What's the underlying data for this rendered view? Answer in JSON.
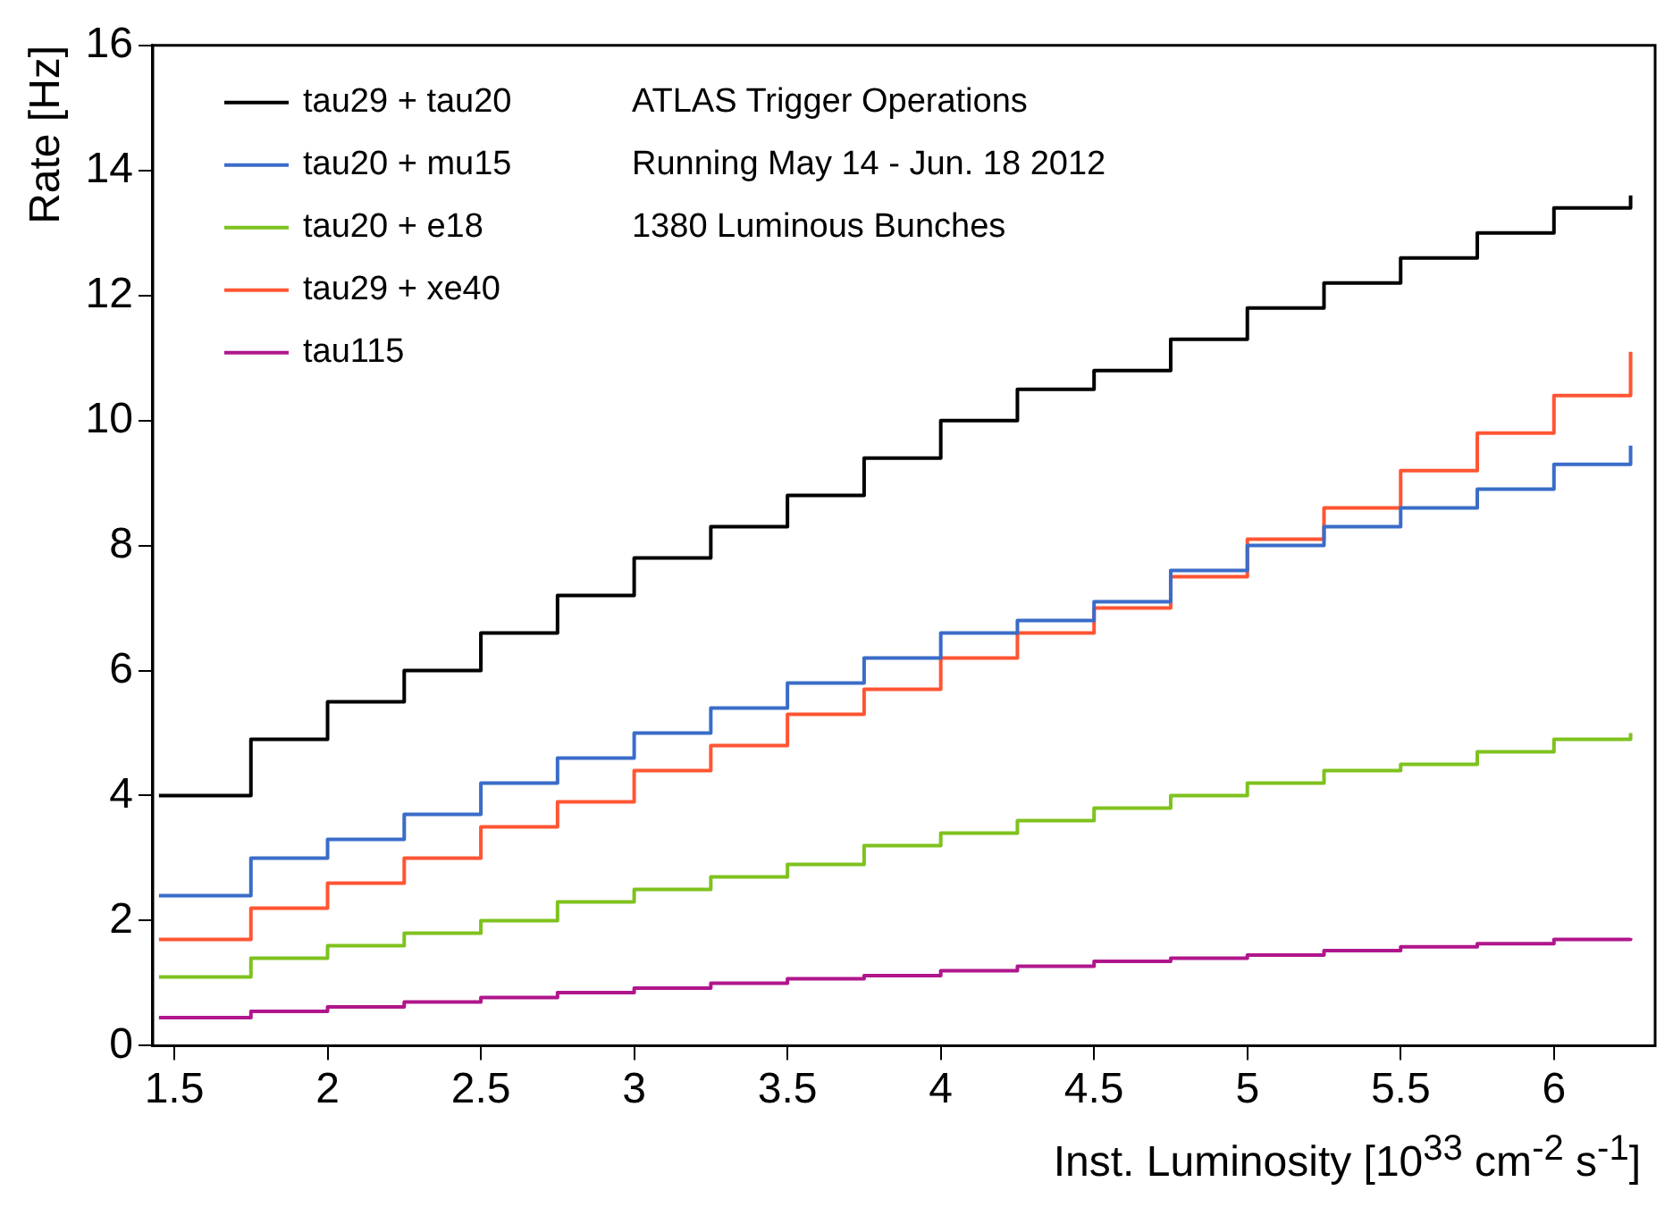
{
  "chart_data": {
    "type": "step",
    "xlabel": "Inst. Luminosity [10$^{33}$ cm$^{-2}$ s$^{-1}$]",
    "ylabel": "Rate [Hz]",
    "annotations": [
      "ATLAS Trigger Operations",
      "Running May 14 - Jun. 18 2012",
      "1380 Luminous Bunches"
    ],
    "x": [
      1.45,
      1.75,
      2,
      2.25,
      2.5,
      2.75,
      3,
      3.25,
      3.5,
      3.75,
      4,
      4.25,
      4.5,
      4.75,
      5,
      5.25,
      5.5,
      5.75,
      6,
      6.25
    ],
    "series": [
      {
        "name": "tau29 + tau20",
        "color": "#000000",
        "values": [
          4.0,
          4.9,
          5.5,
          6.0,
          6.6,
          7.2,
          7.8,
          8.3,
          8.8,
          9.4,
          10.0,
          10.5,
          10.8,
          11.3,
          11.8,
          12.2,
          12.6,
          13.0,
          13.4,
          13.6
        ]
      },
      {
        "name": "tau20 + mu15",
        "color": "#3a6cc8",
        "values": [
          2.4,
          3.0,
          3.3,
          3.7,
          4.2,
          4.6,
          5.0,
          5.4,
          5.8,
          6.2,
          6.6,
          6.8,
          7.1,
          7.6,
          8.0,
          8.3,
          8.6,
          8.9,
          9.3,
          9.6
        ]
      },
      {
        "name": "tau20 + e18",
        "color": "#7ec21e",
        "values": [
          1.1,
          1.4,
          1.6,
          1.8,
          2.0,
          2.3,
          2.5,
          2.7,
          2.9,
          3.2,
          3.4,
          3.6,
          3.8,
          4.0,
          4.2,
          4.4,
          4.5,
          4.7,
          4.9,
          5.0
        ]
      },
      {
        "name": "tau29 + xe40",
        "color": "#ff5533",
        "values": [
          1.7,
          2.2,
          2.6,
          3.0,
          3.5,
          3.9,
          4.4,
          4.8,
          5.3,
          5.7,
          6.2,
          6.6,
          7.0,
          7.5,
          8.1,
          8.6,
          9.2,
          9.8,
          10.4,
          11.1
        ]
      },
      {
        "name": "tau115",
        "color": "#b0168c",
        "values": [
          0.45,
          0.55,
          0.62,
          0.7,
          0.77,
          0.85,
          0.92,
          1.0,
          1.07,
          1.12,
          1.2,
          1.27,
          1.35,
          1.4,
          1.45,
          1.52,
          1.58,
          1.63,
          1.7,
          1.72
        ]
      }
    ],
    "xlim": [
      1.43,
      6.33
    ],
    "xticks": [
      1.5,
      2,
      2.5,
      3,
      3.5,
      4,
      4.5,
      5,
      5.5,
      6
    ],
    "ylim": [
      0,
      16
    ],
    "yticks": [
      0,
      2,
      4,
      6,
      8,
      10,
      12,
      14,
      16
    ],
    "grid": false,
    "legend": "top left"
  }
}
